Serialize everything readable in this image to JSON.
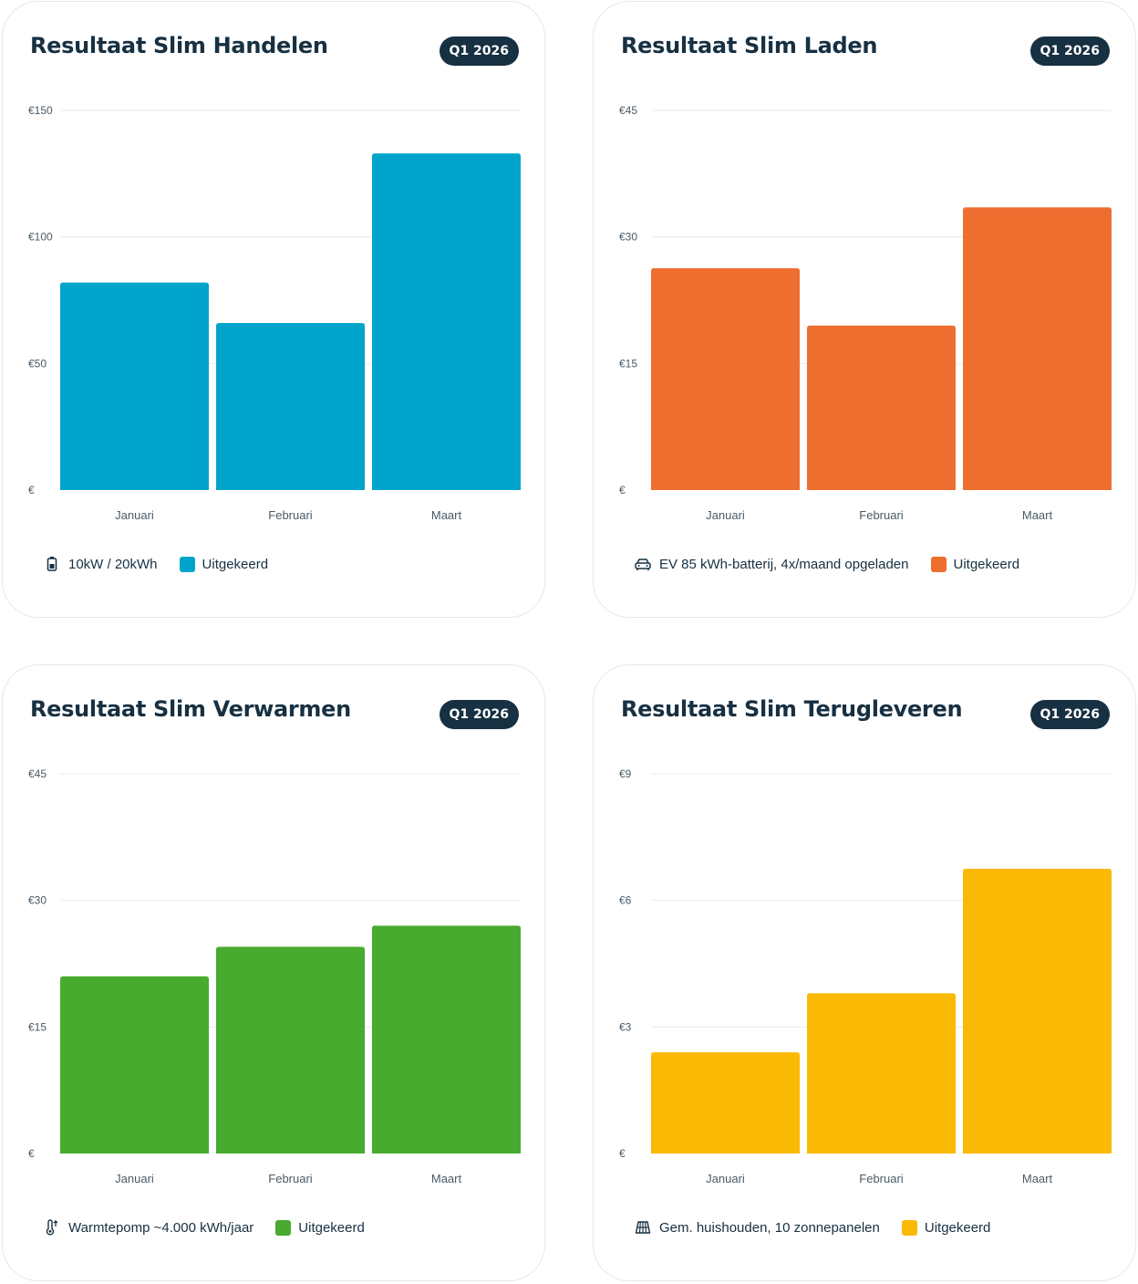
{
  "charts": [
    {
      "title": "Resultaat Slim Handelen",
      "badge": "Q1 2026",
      "info_icon": "battery-icon",
      "info_text": "10kW / 20kWh",
      "legend_label": "Uitgekeerd",
      "color": "#00a4cb"
    },
    {
      "title": "Resultaat Slim Laden",
      "badge": "Q1 2026",
      "info_icon": "car-icon",
      "info_text": "EV 85 kWh-batterij, 4x/maand opgeladen",
      "legend_label": "Uitgekeerd",
      "color": "#ee6e30"
    },
    {
      "title": "Resultaat Slim Verwarmen",
      "badge": "Q1 2026",
      "info_icon": "thermometer-icon",
      "info_text": "Warmtepomp ~4.000 kWh/jaar",
      "legend_label": "Uitgekeerd",
      "color": "#48aa2e"
    },
    {
      "title": "Resultaat Slim Terugleveren",
      "badge": "Q1 2026",
      "info_icon": "solar-panel-icon",
      "info_text": "Gem. huishouden, 10 zonnepanelen",
      "legend_label": "Uitgekeerd",
      "color": "#fab905"
    }
  ],
  "chart_data": [
    {
      "type": "bar",
      "title": "Resultaat Slim Handelen",
      "categories": [
        "Januari",
        "Februari",
        "Maart"
      ],
      "series": [
        {
          "name": "Uitgekeerd",
          "values": [
            82,
            66,
            133
          ]
        }
      ],
      "ylim": [
        0,
        150
      ],
      "yticks": [
        0,
        50,
        100,
        150
      ],
      "ytick_labels": [
        "€",
        "€50",
        "€100",
        "€150"
      ],
      "grid": true,
      "legend_position": "bottom-left"
    },
    {
      "type": "bar",
      "title": "Resultaat Slim Laden",
      "categories": [
        "Januari",
        "Februari",
        "Maart"
      ],
      "series": [
        {
          "name": "Uitgekeerd",
          "values": [
            26.3,
            19.5,
            33.5
          ]
        }
      ],
      "ylim": [
        0,
        45
      ],
      "yticks": [
        0,
        15,
        30,
        45
      ],
      "ytick_labels": [
        "€",
        "€15",
        "€30",
        "€45"
      ],
      "grid": true,
      "legend_position": "bottom-left"
    },
    {
      "type": "bar",
      "title": "Resultaat Slim Verwarmen",
      "categories": [
        "Januari",
        "Februari",
        "Maart"
      ],
      "series": [
        {
          "name": "Uitgekeerd",
          "values": [
            21,
            24.5,
            27
          ]
        }
      ],
      "ylim": [
        0,
        45
      ],
      "yticks": [
        0,
        15,
        30,
        45
      ],
      "ytick_labels": [
        "€",
        "€15",
        "€30",
        "€45"
      ],
      "grid": true,
      "legend_position": "bottom-left"
    },
    {
      "type": "bar",
      "title": "Resultaat Slim Terugleveren",
      "categories": [
        "Januari",
        "Februari",
        "Maart"
      ],
      "series": [
        {
          "name": "Uitgekeerd",
          "values": [
            2.4,
            3.8,
            6.75
          ]
        }
      ],
      "ylim": [
        0,
        9
      ],
      "yticks": [
        0,
        3,
        6,
        9
      ],
      "ytick_labels": [
        "€",
        "€3",
        "€6",
        "€9"
      ],
      "grid": true,
      "legend_position": "bottom-left"
    }
  ]
}
